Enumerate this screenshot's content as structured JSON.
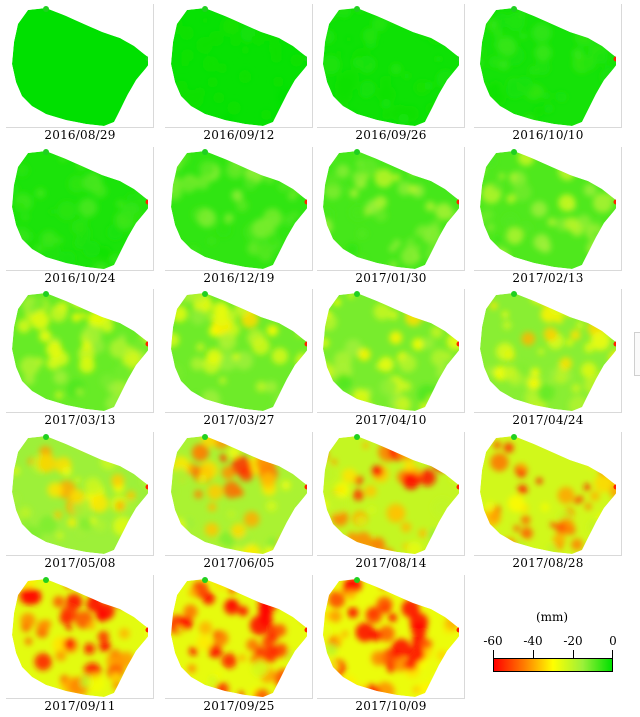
{
  "panels": [
    {
      "date": "2016/08/29",
      "level": 0.0
    },
    {
      "date": "2016/09/12",
      "level": 0.02
    },
    {
      "date": "2016/09/26",
      "level": 0.04
    },
    {
      "date": "2016/10/10",
      "level": 0.06
    },
    {
      "date": "2016/10/24",
      "level": 0.08
    },
    {
      "date": "2016/12/19",
      "level": 0.14
    },
    {
      "date": "2017/01/30",
      "level": 0.2
    },
    {
      "date": "2017/02/13",
      "level": 0.23
    },
    {
      "date": "2017/03/13",
      "level": 0.3
    },
    {
      "date": "2017/03/27",
      "level": 0.32
    },
    {
      "date": "2017/04/10",
      "level": 0.35
    },
    {
      "date": "2017/04/24",
      "level": 0.4
    },
    {
      "date": "2017/05/08",
      "level": 0.46
    },
    {
      "date": "2017/06/05",
      "level": 0.52
    },
    {
      "date": "2017/08/14",
      "level": 0.64
    },
    {
      "date": "2017/08/28",
      "level": 0.7
    },
    {
      "date": "2017/09/11",
      "level": 0.78
    },
    {
      "date": "2017/09/25",
      "level": 0.8
    },
    {
      "date": "2017/10/09",
      "level": 0.82
    }
  ],
  "legend": {
    "unit": "(mm)",
    "ticks": [
      "-60",
      "-40",
      "-20",
      "0"
    ],
    "range": [
      -60,
      0
    ],
    "colors": [
      "#ff0000",
      "#ff7a00",
      "#ffff00",
      "#9cf03a",
      "#00e000"
    ]
  }
}
